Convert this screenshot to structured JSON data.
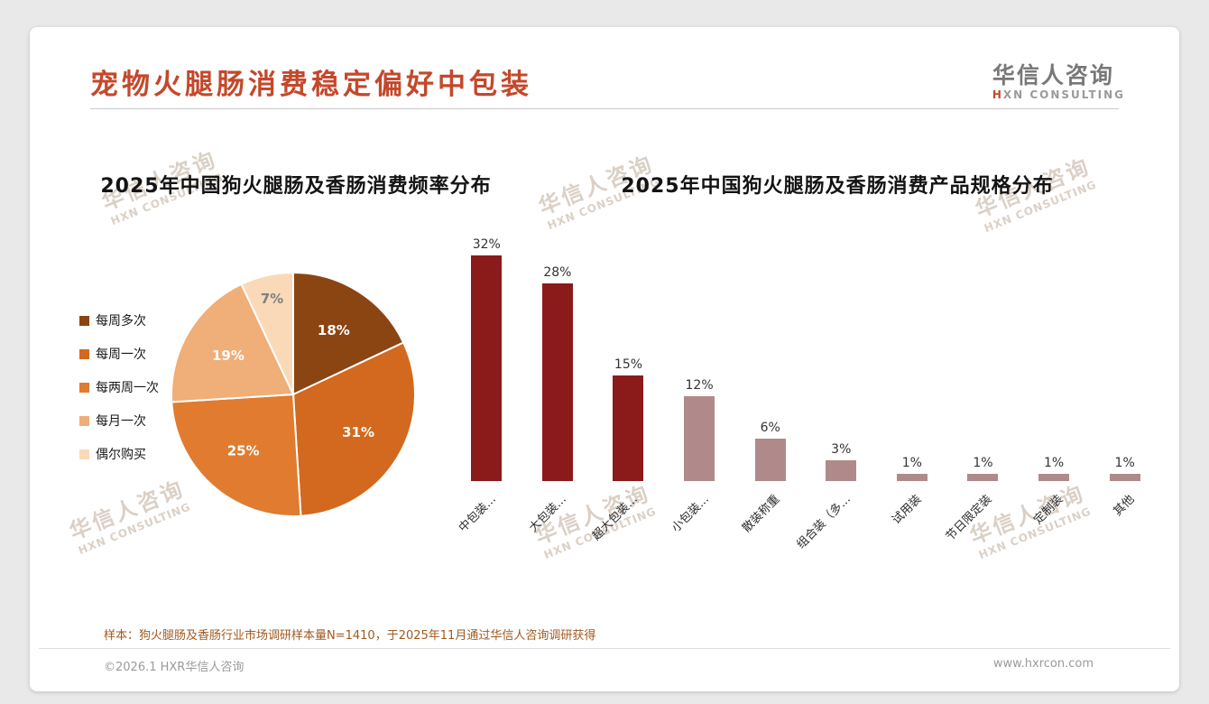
{
  "colors": {
    "accent": "#c4482b",
    "bar_dark": "#8b1a1a",
    "bar_light": "#b08a8a",
    "footnote_text": "#a05a20",
    "footer_text": "#9a9a9a",
    "watermark": "#a89076"
  },
  "header": {
    "title": "宠物火腿肠消费稳定偏好中包装",
    "logo_cn": "华信人咨询",
    "logo_en_accent": "H",
    "logo_en_rest": "XN CONSULTING"
  },
  "watermark": {
    "cn": "华信人咨询",
    "en": "HXN CONSULTING"
  },
  "chart_data": [
    {
      "type": "pie",
      "title": "2025年中国狗火腿肠及香肠消费频率分布",
      "labels": [
        "每周多次",
        "每周一次",
        "每两周一次",
        "每月一次",
        "偶尔购买"
      ],
      "values": [
        18,
        31,
        25,
        19,
        7
      ],
      "value_labels": [
        "18%",
        "31%",
        "25%",
        "19%",
        "7%"
      ],
      "unit": "%",
      "colors": [
        "#8b4513",
        "#d2691e",
        "#e07b30",
        "#f0ae78",
        "#f9d9b8"
      ],
      "label_colors": [
        "#ffffff",
        "#ffffff",
        "#ffffff",
        "#ffffff",
        "#808080"
      ],
      "legend_position": "left",
      "start_angle_deg": -90,
      "direction": "clockwise"
    },
    {
      "type": "bar",
      "title": "2025年中国狗火腿肠及香肠消费产品规格分布",
      "categories": [
        "中包装...",
        "大包装...",
        "超大包装...",
        "小包装...",
        "散装称重",
        "组合装（多...",
        "试用装",
        "节日限定装",
        "定制装",
        "其他"
      ],
      "values": [
        32,
        28,
        15,
        12,
        6,
        3,
        1,
        1,
        1,
        1
      ],
      "value_labels": [
        "32%",
        "28%",
        "15%",
        "12%",
        "6%",
        "3%",
        "1%",
        "1%",
        "1%",
        "1%"
      ],
      "unit": "%",
      "colors": [
        "#8b1a1a",
        "#8b1a1a",
        "#8b1a1a",
        "#b08a8a",
        "#b08a8a",
        "#b08a8a",
        "#b08a8a",
        "#b08a8a",
        "#b08a8a",
        "#b08a8a"
      ],
      "ylim": [
        0,
        32
      ],
      "grid": false,
      "legend": false,
      "tick_rotation_deg": 45
    }
  ],
  "footnote": "样本：狗火腿肠及香肠行业市场调研样本量N=1410，于2025年11月通过华信人咨询调研获得",
  "footer": {
    "copyright": "©2026.1 HXR华信人咨询",
    "website": "www.hxrcon.com"
  }
}
